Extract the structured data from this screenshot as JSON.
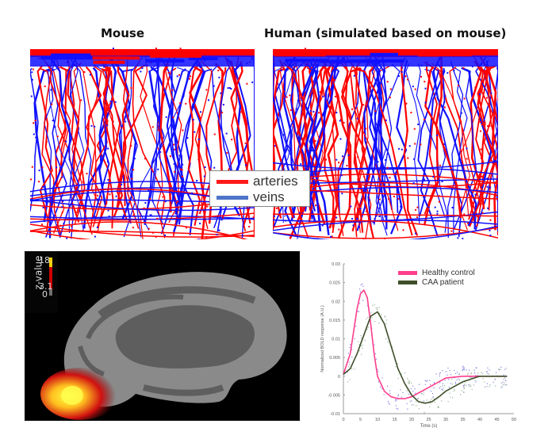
{
  "panels": {
    "mouse": {
      "title": "Mouse"
    },
    "human": {
      "title": "Human (simulated based on mouse)"
    }
  },
  "vessel_legend": {
    "items": [
      {
        "label": "arteries",
        "color": "#ff1a1a"
      },
      {
        "label": "veins",
        "color": "#4f74c8"
      }
    ]
  },
  "vessel_colors": {
    "artery": "#ff0000",
    "vein": "#1010ff"
  },
  "brain_map": {
    "colorbar_label": "z-value",
    "colorbar_ticks": [
      "18.",
      "3.1",
      "0"
    ]
  },
  "chart_data": {
    "type": "line",
    "title": "",
    "xlabel": "Time (s)",
    "ylabel": "Normalized BOLD response (A.U.)",
    "xlim": [
      0,
      50
    ],
    "ylim": [
      -0.01,
      0.03
    ],
    "xticks": [
      "0",
      "5",
      "10",
      "15",
      "20",
      "25",
      "30",
      "35",
      "40",
      "45",
      "50"
    ],
    "yticks": [
      "0.03",
      "0.025",
      "0.02",
      "0.015",
      "0.01",
      "0.005",
      "0",
      "-0.005",
      "-0.01"
    ],
    "legend_position": "upper right",
    "series": [
      {
        "name": "Healthy control",
        "color": "#ff3e8c",
        "x": [
          0,
          2,
          4,
          5,
          6,
          7,
          8,
          9,
          10,
          12,
          14,
          16,
          18,
          20,
          22,
          25,
          30,
          35,
          40,
          48
        ],
        "values": [
          0.0005,
          0.006,
          0.018,
          0.022,
          0.023,
          0.021,
          0.014,
          0.006,
          0.0,
          -0.004,
          -0.0055,
          -0.006,
          -0.006,
          -0.0055,
          -0.0045,
          -0.003,
          -0.0005,
          0.0,
          0.0,
          0.0
        ]
      },
      {
        "name": "CAA patient",
        "color": "#3f4f2a",
        "x": [
          0,
          2,
          4,
          6,
          8,
          10,
          12,
          14,
          16,
          18,
          20,
          22,
          24,
          26,
          28,
          30,
          35,
          40,
          48
        ],
        "values": [
          0.0005,
          0.002,
          0.006,
          0.011,
          0.016,
          0.0172,
          0.014,
          0.008,
          0.002,
          -0.002,
          -0.005,
          -0.0068,
          -0.0072,
          -0.0068,
          -0.0055,
          -0.004,
          -0.0015,
          0.0,
          0.0
        ]
      }
    ]
  }
}
